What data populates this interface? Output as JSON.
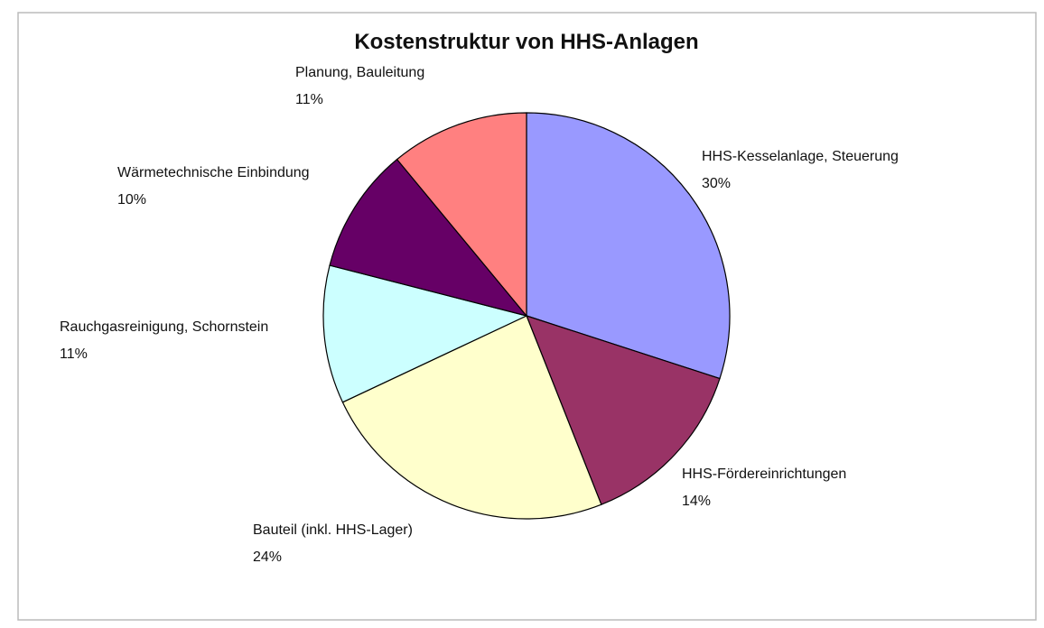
{
  "chart_data": {
    "type": "pie",
    "title": "Kostenstruktur von HHS-Anlagen",
    "categories": [
      "HHS-Kesselanlage, Steuerung",
      "HHS-Fördereinrichtungen",
      "Bauteil (inkl. HHS-Lager)",
      "Rauchgasreinigung, Schornstein",
      "Wärmetechnische Einbindung",
      "Planung, Bauleitung"
    ],
    "values": [
      30,
      14,
      24,
      11,
      10,
      11
    ],
    "value_labels": [
      "30%",
      "14%",
      "24%",
      "11%",
      "10%",
      "11%"
    ],
    "colors": [
      "#9999ff",
      "#993366",
      "#ffffcc",
      "#ccffff",
      "#660066",
      "#ff8080"
    ]
  }
}
